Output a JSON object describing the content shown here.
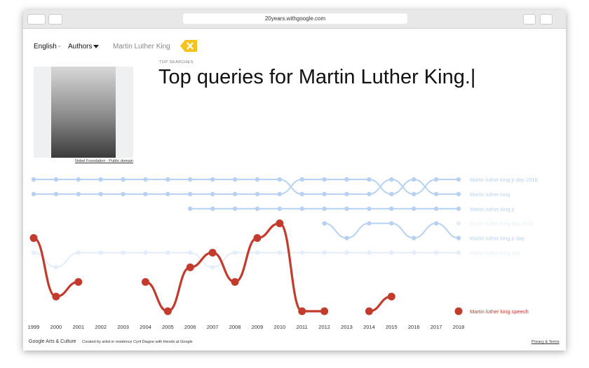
{
  "browser": {
    "url": "20years.withgoogle.com"
  },
  "nav": {
    "language": "English",
    "separator": "-",
    "category": "Authors",
    "query": "Martin Luther King"
  },
  "header": {
    "kicker": "TOP SEARCHES",
    "title": "Top queries for Martin Luther King.",
    "photo_credit": "Nobel Foundation - Public domain"
  },
  "footer": {
    "brand": "Google Arts & Culture",
    "credit": "Created by artist in residence Cyril Diagne with friends at Google",
    "link": "Privacy & Terms"
  },
  "chart_data": {
    "type": "bump",
    "categories": [
      "1999",
      "2000",
      "2001",
      "2002",
      "2003",
      "2004",
      "2005",
      "2006",
      "2007",
      "2008",
      "2009",
      "2010",
      "2011",
      "2012",
      "2013",
      "2014",
      "2015",
      "2016",
      "2017",
      "2018"
    ],
    "ylim": [
      1,
      10
    ],
    "series": [
      {
        "name": "Martin luther king jr day 2018",
        "color": "#b7d1f2",
        "values": [
          1,
          1,
          1,
          1,
          1,
          1,
          1,
          1,
          1,
          1,
          1,
          1,
          2,
          2,
          2,
          2,
          1,
          2,
          1,
          1
        ]
      },
      {
        "name": "Martin luther king",
        "color": "#b7d1f2",
        "values": [
          2,
          2,
          2,
          2,
          2,
          2,
          2,
          2,
          2,
          2,
          2,
          2,
          1,
          1,
          1,
          1,
          2,
          1,
          2,
          2
        ]
      },
      {
        "name": "Martin luther king jr",
        "color": "#b7d1f2",
        "values": [
          null,
          null,
          null,
          null,
          null,
          null,
          null,
          3,
          3,
          3,
          3,
          3,
          3,
          3,
          3,
          3,
          3,
          3,
          3,
          3
        ]
      },
      {
        "name": "Martin luther king day 2018",
        "color": "#e4edf9",
        "values": [
          null,
          null,
          null,
          null,
          null,
          null,
          null,
          null,
          null,
          null,
          null,
          null,
          null,
          null,
          null,
          null,
          null,
          null,
          null,
          4
        ]
      },
      {
        "name": "Martin luther king jr day",
        "color": "#b7d1f2",
        "values": [
          null,
          null,
          null,
          null,
          null,
          null,
          null,
          null,
          null,
          null,
          null,
          null,
          null,
          4,
          5,
          4,
          4,
          5,
          4,
          5
        ]
      },
      {
        "name": "Martin luther king day",
        "color": "#e4edf9",
        "values": [
          6,
          7,
          6,
          6,
          6,
          6,
          6,
          6,
          7,
          6,
          6,
          6,
          6,
          6,
          6,
          6,
          6,
          6,
          6,
          6
        ]
      },
      {
        "name": "Martin luther king speech",
        "color": "#c23b2c",
        "highlight": true,
        "values": [
          5,
          9,
          8,
          null,
          null,
          8,
          10,
          7,
          6,
          8,
          5,
          4,
          10,
          10,
          null,
          10,
          9,
          null,
          null,
          10
        ]
      }
    ]
  }
}
